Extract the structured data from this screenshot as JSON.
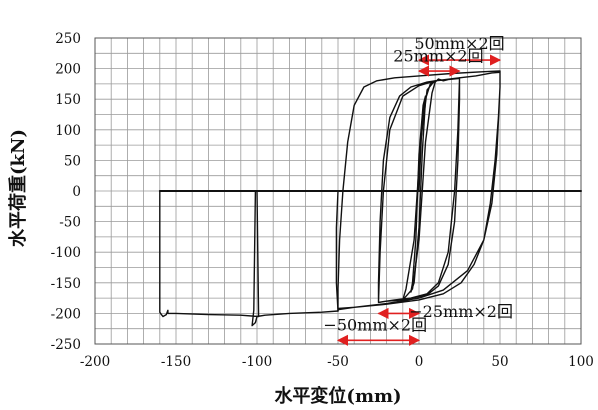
{
  "chart_data": {
    "type": "line",
    "title": "",
    "xlabel": "水平変位(mm)",
    "ylabel": "水平荷重(kN)",
    "xlim": [
      -200,
      100
    ],
    "ylim": [
      -250,
      250
    ],
    "x_ticks": [
      -200,
      -150,
      -100,
      -50,
      0,
      50,
      100
    ],
    "y_ticks": [
      250,
      200,
      150,
      100,
      50,
      0,
      -50,
      -100,
      -150,
      -200,
      -250
    ],
    "x_tick_labels": [
      "-200",
      "-150",
      "-100",
      "-50",
      "0",
      "50",
      "100"
    ],
    "y_tick_labels": [
      "250",
      "200",
      "150",
      "100",
      "50",
      "0",
      "-50",
      "-100",
      "-150",
      "-200",
      "-250"
    ],
    "grid": true,
    "grid_step_x": 10,
    "grid_step_y": 25,
    "line_color": "#111111",
    "annotation_color": "#e02020",
    "series": [
      {
        "points": [
          [
            0,
            0
          ],
          [
            1.5,
            90
          ],
          [
            3,
            140
          ],
          [
            4,
            155
          ],
          [
            2.5,
            140
          ],
          [
            0,
            60
          ],
          [
            -2,
            -80
          ],
          [
            -4,
            -150
          ],
          [
            -5,
            -165
          ],
          [
            -3,
            -150
          ],
          [
            0,
            -60
          ],
          [
            2,
            60
          ],
          [
            4,
            150
          ]
        ]
      },
      {
        "points": [
          [
            4,
            150
          ],
          [
            7,
            175
          ],
          [
            10,
            180
          ],
          [
            8,
            175
          ],
          [
            5,
            165
          ],
          [
            1,
            80
          ],
          [
            -3,
            -80
          ],
          [
            -8,
            -160
          ],
          [
            -10,
            -178
          ],
          [
            -8,
            -172
          ],
          [
            -4,
            -160
          ],
          [
            0,
            -80
          ],
          [
            4,
            80
          ],
          [
            8,
            160
          ],
          [
            10,
            178
          ]
        ]
      },
      {
        "points": [
          [
            10,
            178
          ],
          [
            12,
            183
          ],
          [
            15,
            180
          ],
          [
            18,
            182
          ],
          [
            22,
            184
          ],
          [
            25,
            184
          ],
          [
            25,
            150
          ],
          [
            24,
            50
          ],
          [
            22,
            -50
          ],
          [
            18,
            -120
          ],
          [
            12,
            -155
          ],
          [
            5,
            -170
          ],
          [
            -10,
            -178
          ],
          [
            -20,
            -180
          ],
          [
            -25,
            -182
          ],
          [
            -25,
            -150
          ],
          [
            -24,
            -50
          ],
          [
            -22,
            50
          ],
          [
            -18,
            120
          ],
          [
            -12,
            155
          ],
          [
            -5,
            170
          ],
          [
            5,
            178
          ],
          [
            10,
            180
          ],
          [
            25,
            184
          ],
          [
            25,
            183
          ],
          [
            24,
            100
          ],
          [
            22,
            0
          ],
          [
            18,
            -100
          ],
          [
            12,
            -150
          ],
          [
            5,
            -168
          ],
          [
            -5,
            -175
          ],
          [
            -15,
            -178
          ],
          [
            -25,
            -182
          ],
          [
            -24,
            -100
          ],
          [
            -22,
            0
          ],
          [
            -18,
            100
          ],
          [
            -10,
            155
          ],
          [
            0,
            172
          ],
          [
            10,
            180
          ],
          [
            25,
            185
          ]
        ]
      },
      {
        "points": [
          [
            25,
            185
          ],
          [
            35,
            188
          ],
          [
            45,
            193
          ],
          [
            50,
            194
          ],
          [
            50,
            170
          ],
          [
            49,
            120
          ],
          [
            47,
            50
          ],
          [
            44,
            -20
          ],
          [
            40,
            -80
          ],
          [
            34,
            -120
          ],
          [
            26,
            -150
          ],
          [
            15,
            -168
          ],
          [
            0,
            -178
          ],
          [
            -20,
            -185
          ],
          [
            -40,
            -190
          ],
          [
            -50,
            -192
          ],
          [
            -50,
            -160
          ],
          [
            -49,
            -80
          ],
          [
            -47,
            0
          ],
          [
            -44,
            80
          ],
          [
            -40,
            140
          ],
          [
            -34,
            170
          ],
          [
            -26,
            180
          ],
          [
            -15,
            185
          ],
          [
            0,
            188
          ],
          [
            20,
            192
          ],
          [
            40,
            195
          ],
          [
            50,
            196
          ],
          [
            50,
            170
          ],
          [
            48,
            60
          ],
          [
            45,
            -20
          ],
          [
            40,
            -80
          ],
          [
            30,
            -130
          ],
          [
            15,
            -162
          ],
          [
            0,
            -175
          ],
          [
            -20,
            -184
          ],
          [
            -40,
            -190
          ],
          [
            -50,
            -194
          ],
          [
            -50,
            -196
          ]
        ]
      },
      {
        "points": [
          [
            -50,
            -196
          ],
          [
            -60,
            -198
          ],
          [
            -80,
            -200
          ],
          [
            -95,
            -203
          ],
          [
            -100,
            -205
          ],
          [
            -101,
            -215
          ],
          [
            -103,
            -220
          ],
          [
            -102,
            -195
          ],
          [
            -101,
            0
          ],
          [
            -100,
            0
          ],
          [
            -99,
            -205
          ],
          [
            -110,
            -203
          ],
          [
            -130,
            -202
          ],
          [
            -150,
            -200
          ],
          [
            -155,
            -200
          ],
          [
            -155,
            -195
          ],
          [
            -156,
            -202
          ],
          [
            -158,
            -205
          ],
          [
            -159,
            -202
          ],
          [
            -160,
            -198
          ],
          [
            -160,
            0
          ]
        ]
      },
      {
        "points": [
          [
            -50,
            -196
          ],
          [
            -51,
            -150
          ],
          [
            -51,
            -60
          ],
          [
            -50,
            0
          ]
        ]
      },
      {
        "points": [
          [
            -160,
            0
          ],
          [
            100,
            0
          ]
        ]
      }
    ],
    "annotations": [
      {
        "text": "50mm×2回",
        "x_from": 0,
        "x_to": 50,
        "y": 214,
        "label_x": 25,
        "label_y": 232
      },
      {
        "text": "25mm×2回",
        "x_from": 0,
        "x_to": 25,
        "y": 196,
        "label_x": 12,
        "label_y": 212
      },
      {
        "text": "−25mm×2回",
        "x_from": -25,
        "x_to": 0,
        "y": -200,
        "label_x": 26,
        "label_y": -206
      },
      {
        "text": "−50mm×2回",
        "x_from": -50,
        "x_to": 0,
        "y": -244,
        "label_x": -27,
        "label_y": -228
      }
    ]
  }
}
